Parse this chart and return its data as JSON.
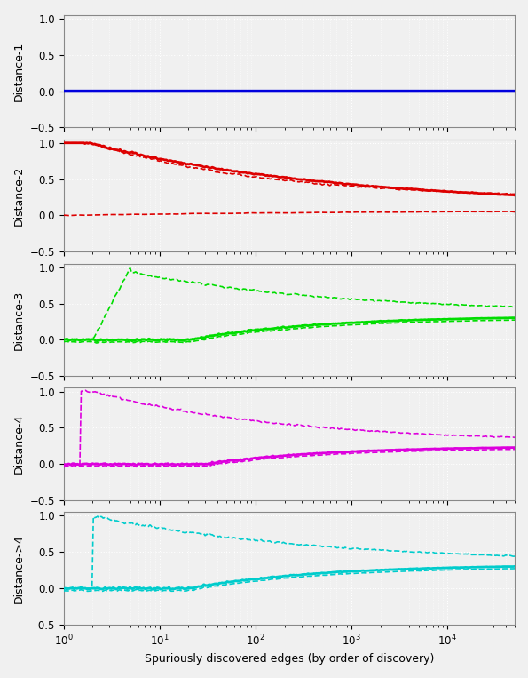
{
  "subplot_labels": [
    "Distance-1",
    "Distance-2",
    "Distance-3",
    "Distance-4",
    "Distance->4"
  ],
  "colors": [
    "#0000dd",
    "#dd0000",
    "#00dd00",
    "#dd00dd",
    "#00cccc"
  ],
  "xlim": [
    1,
    50000
  ],
  "ylim": [
    -0.5,
    1.05
  ],
  "yticks": [
    -0.5,
    0.0,
    0.5,
    1.0
  ],
  "xlabel": "Spuriously discovered edges (by order of discovery)",
  "figsize": [
    5.95,
    7.63
  ],
  "dpi": 100,
  "background_color": "#f0f0f0",
  "grid_color": "#ffffff",
  "label_fontsize": 9,
  "tick_fontsize": 8.5,
  "ylabel_fontsize": 9
}
